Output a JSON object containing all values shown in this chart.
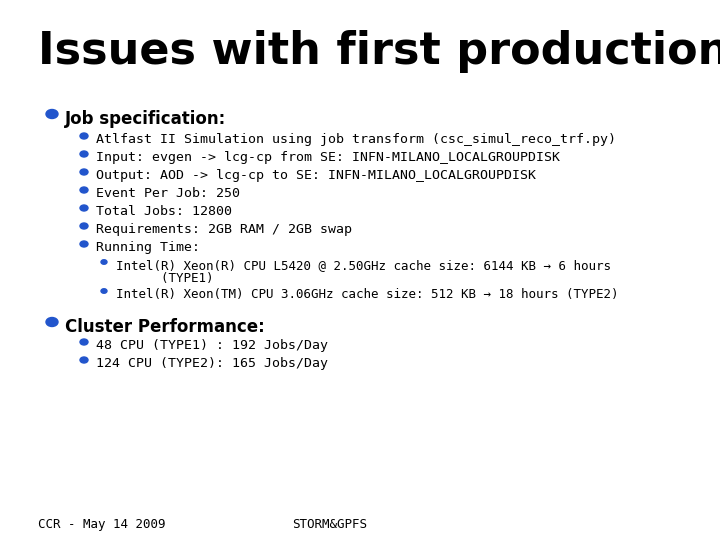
{
  "title": "Issues with first production run",
  "bg_color": "#ffffff",
  "title_color": "#000000",
  "title_fontsize": 32,
  "accent_bar_color": "#2244bb",
  "accent_bar_color2": "#aaaaaa",
  "bullet_color": "#2255cc",
  "section1_header": "Job specification:",
  "section1_bullets": [
    "Atlfast II Simulation using job transform (csc_simul_reco_trf.py)",
    "Input: evgen -> lcg-cp from SE: INFN-MILANO_LOCALGROUPDISK",
    "Output: AOD -> lcg-cp to SE: INFN-MILANO_LOCALGROUPDISK",
    "Event Per Job: 250",
    "Total Jobs: 12800",
    "Requirements: 2GB RAM / 2GB swap",
    "Running Time:"
  ],
  "sub_bullet1_line1": "Intel(R) Xeon(R) CPU L5420 @ 2.50GHz cache size: 6144 KB → 6 hours",
  "sub_bullet1_line2": "      (TYPE1)",
  "sub_bullet2": "Intel(R) Xeon(TM) CPU 3.06GHz cache size: 512 KB → 18 hours (TYPE2)",
  "section2_header": "Cluster Performance:",
  "section2_bullets": [
    "48 CPU (TYPE1) : 192 Jobs/Day",
    "124 CPU (TYPE2): 165 Jobs/Day"
  ],
  "footer_left": "CCR - May 14 2009",
  "footer_center": "STORM&GPFS",
  "footer_fontsize": 9,
  "body_fontsize": 9.5,
  "header_fontsize": 12,
  "monospace_font": "monospace"
}
